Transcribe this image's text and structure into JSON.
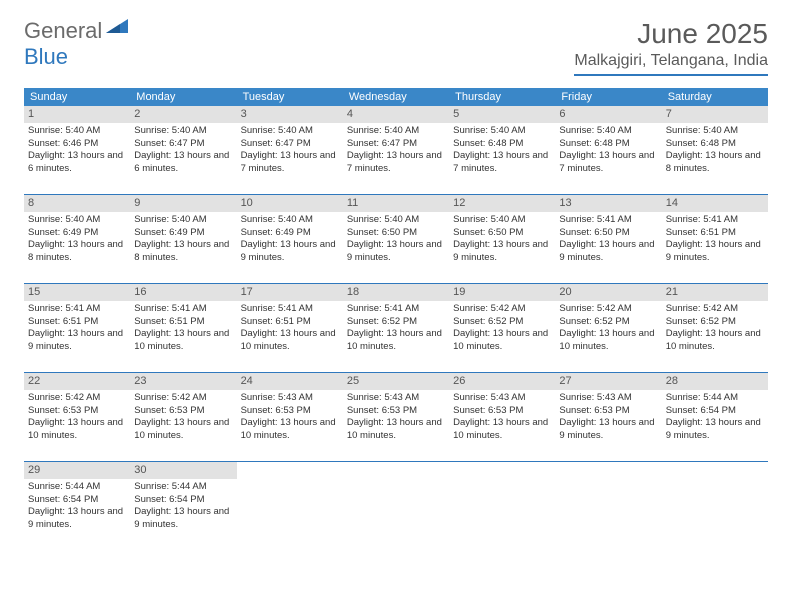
{
  "logo": {
    "text1": "General",
    "text2": "Blue"
  },
  "title": "June 2025",
  "location": "Malkajgiri, Telangana, India",
  "colors": {
    "header_bg": "#3a87c8",
    "rule": "#2f78bd",
    "daynum_bg": "#e2e2e2",
    "text": "#333333",
    "title_text": "#5a5a5a"
  },
  "fonts": {
    "title_pt": 28,
    "location_pt": 16,
    "weekday_pt": 11,
    "body_pt": 9.5
  },
  "weekdays": [
    "Sunday",
    "Monday",
    "Tuesday",
    "Wednesday",
    "Thursday",
    "Friday",
    "Saturday"
  ],
  "labels": {
    "sunrise": "Sunrise:",
    "sunset": "Sunset:",
    "daylight": "Daylight:"
  },
  "days": [
    {
      "n": 1,
      "sunrise": "5:40 AM",
      "sunset": "6:46 PM",
      "daylight": "13 hours and 6 minutes."
    },
    {
      "n": 2,
      "sunrise": "5:40 AM",
      "sunset": "6:47 PM",
      "daylight": "13 hours and 6 minutes."
    },
    {
      "n": 3,
      "sunrise": "5:40 AM",
      "sunset": "6:47 PM",
      "daylight": "13 hours and 7 minutes."
    },
    {
      "n": 4,
      "sunrise": "5:40 AM",
      "sunset": "6:47 PM",
      "daylight": "13 hours and 7 minutes."
    },
    {
      "n": 5,
      "sunrise": "5:40 AM",
      "sunset": "6:48 PM",
      "daylight": "13 hours and 7 minutes."
    },
    {
      "n": 6,
      "sunrise": "5:40 AM",
      "sunset": "6:48 PM",
      "daylight": "13 hours and 7 minutes."
    },
    {
      "n": 7,
      "sunrise": "5:40 AM",
      "sunset": "6:48 PM",
      "daylight": "13 hours and 8 minutes."
    },
    {
      "n": 8,
      "sunrise": "5:40 AM",
      "sunset": "6:49 PM",
      "daylight": "13 hours and 8 minutes."
    },
    {
      "n": 9,
      "sunrise": "5:40 AM",
      "sunset": "6:49 PM",
      "daylight": "13 hours and 8 minutes."
    },
    {
      "n": 10,
      "sunrise": "5:40 AM",
      "sunset": "6:49 PM",
      "daylight": "13 hours and 9 minutes."
    },
    {
      "n": 11,
      "sunrise": "5:40 AM",
      "sunset": "6:50 PM",
      "daylight": "13 hours and 9 minutes."
    },
    {
      "n": 12,
      "sunrise": "5:40 AM",
      "sunset": "6:50 PM",
      "daylight": "13 hours and 9 minutes."
    },
    {
      "n": 13,
      "sunrise": "5:41 AM",
      "sunset": "6:50 PM",
      "daylight": "13 hours and 9 minutes."
    },
    {
      "n": 14,
      "sunrise": "5:41 AM",
      "sunset": "6:51 PM",
      "daylight": "13 hours and 9 minutes."
    },
    {
      "n": 15,
      "sunrise": "5:41 AM",
      "sunset": "6:51 PM",
      "daylight": "13 hours and 9 minutes."
    },
    {
      "n": 16,
      "sunrise": "5:41 AM",
      "sunset": "6:51 PM",
      "daylight": "13 hours and 10 minutes."
    },
    {
      "n": 17,
      "sunrise": "5:41 AM",
      "sunset": "6:51 PM",
      "daylight": "13 hours and 10 minutes."
    },
    {
      "n": 18,
      "sunrise": "5:41 AM",
      "sunset": "6:52 PM",
      "daylight": "13 hours and 10 minutes."
    },
    {
      "n": 19,
      "sunrise": "5:42 AM",
      "sunset": "6:52 PM",
      "daylight": "13 hours and 10 minutes."
    },
    {
      "n": 20,
      "sunrise": "5:42 AM",
      "sunset": "6:52 PM",
      "daylight": "13 hours and 10 minutes."
    },
    {
      "n": 21,
      "sunrise": "5:42 AM",
      "sunset": "6:52 PM",
      "daylight": "13 hours and 10 minutes."
    },
    {
      "n": 22,
      "sunrise": "5:42 AM",
      "sunset": "6:53 PM",
      "daylight": "13 hours and 10 minutes."
    },
    {
      "n": 23,
      "sunrise": "5:42 AM",
      "sunset": "6:53 PM",
      "daylight": "13 hours and 10 minutes."
    },
    {
      "n": 24,
      "sunrise": "5:43 AM",
      "sunset": "6:53 PM",
      "daylight": "13 hours and 10 minutes."
    },
    {
      "n": 25,
      "sunrise": "5:43 AM",
      "sunset": "6:53 PM",
      "daylight": "13 hours and 10 minutes."
    },
    {
      "n": 26,
      "sunrise": "5:43 AM",
      "sunset": "6:53 PM",
      "daylight": "13 hours and 10 minutes."
    },
    {
      "n": 27,
      "sunrise": "5:43 AM",
      "sunset": "6:53 PM",
      "daylight": "13 hours and 9 minutes."
    },
    {
      "n": 28,
      "sunrise": "5:44 AM",
      "sunset": "6:54 PM",
      "daylight": "13 hours and 9 minutes."
    },
    {
      "n": 29,
      "sunrise": "5:44 AM",
      "sunset": "6:54 PM",
      "daylight": "13 hours and 9 minutes."
    },
    {
      "n": 30,
      "sunrise": "5:44 AM",
      "sunset": "6:54 PM",
      "daylight": "13 hours and 9 minutes."
    }
  ],
  "layout": {
    "cols": 7,
    "start_offset": 0,
    "trailing_empty": 5
  }
}
